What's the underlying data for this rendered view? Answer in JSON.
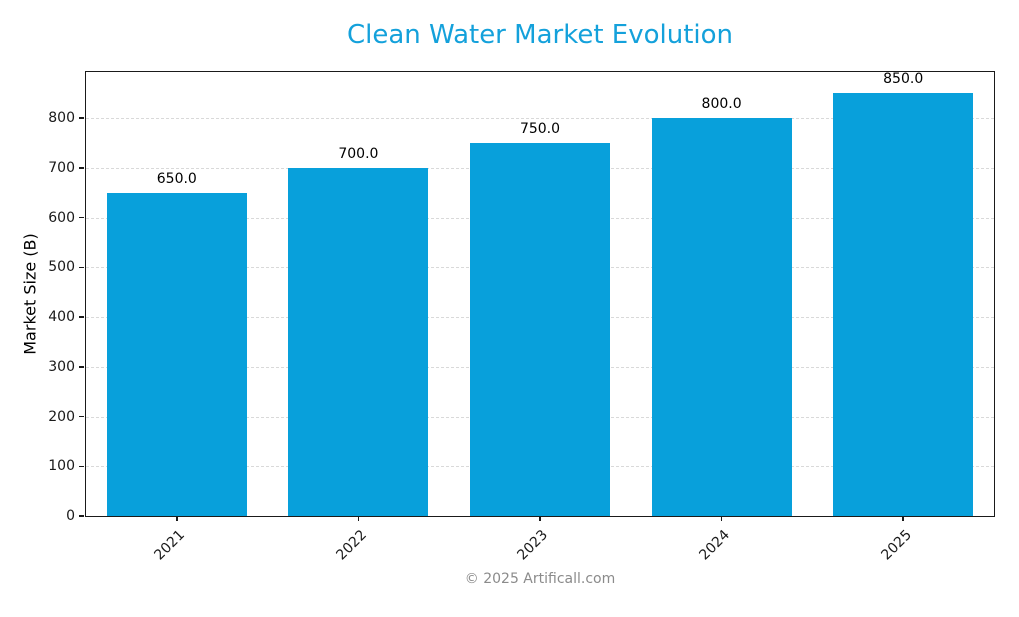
{
  "chart_data": {
    "type": "bar",
    "title": "Clean Water Market Evolution",
    "categories": [
      "2021",
      "2022",
      "2023",
      "2024",
      "2025"
    ],
    "values": [
      650.0,
      700.0,
      750.0,
      800.0,
      850.0
    ],
    "value_labels": [
      "650.0",
      "700.0",
      "750.0",
      "800.0",
      "850.0"
    ],
    "xlabel": "",
    "ylabel": "Market Size (B)",
    "ylim": [
      0,
      892.5
    ],
    "yticks": [
      0,
      100,
      200,
      300,
      400,
      500,
      600,
      700,
      800
    ],
    "grid": "horizontal-dashed",
    "legend": "none",
    "bar_color": "#08a0db",
    "title_color": "#14a1db",
    "grid_color": "#d9d9d9",
    "tick_color": "#1a1a1a"
  },
  "footer": {
    "credit": "© 2025 Artificall.com"
  }
}
